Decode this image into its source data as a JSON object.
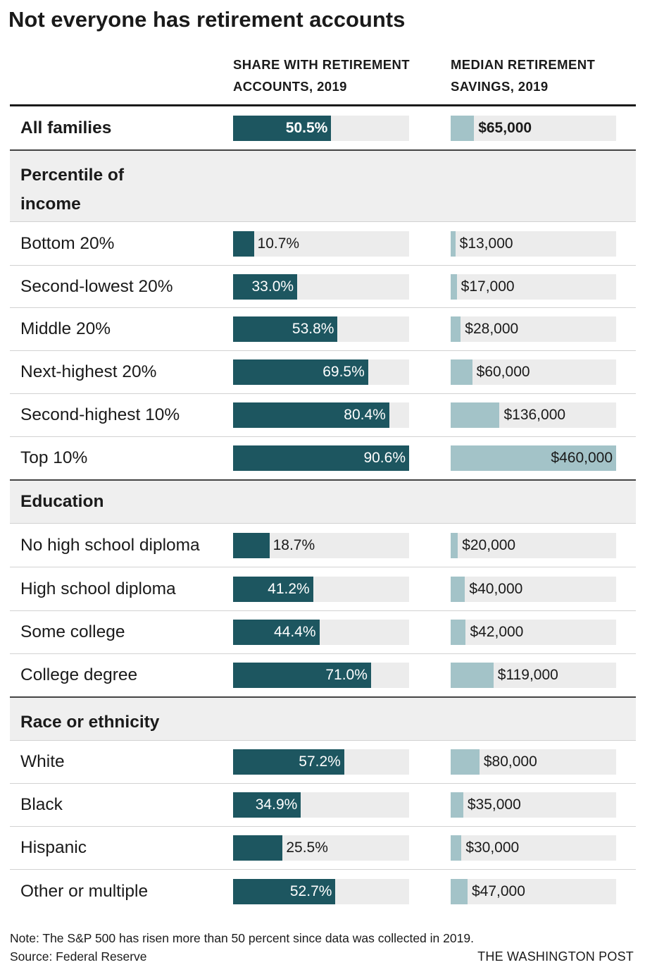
{
  "title": "Not everyone has retirement accounts",
  "columns": {
    "share": "SHARE WITH RETIREMENT ACCOUNTS, 2019",
    "savings": "MEDIAN RETIREMENT SAVINGS, 2019"
  },
  "colors": {
    "share_bar": "#1d5660",
    "savings_bar": "#a3c3c8",
    "track": "#ececec",
    "section_background": "#efefef",
    "rule": "#333333"
  },
  "chart_data": {
    "type": "table",
    "title": "Not everyone has retirement accounts",
    "columns": [
      "SHARE WITH RETIREMENT ACCOUNTS, 2019",
      "MEDIAN RETIREMENT SAVINGS, 2019"
    ],
    "share_max": 90.6,
    "savings_max": 460000,
    "rows": [
      {
        "kind": "data",
        "label": "All families",
        "bold": true,
        "share": 50.5,
        "share_text": "50.5%",
        "savings": 65000,
        "savings_text": "$65,000"
      },
      {
        "kind": "section",
        "label": "Percentile of income"
      },
      {
        "kind": "data",
        "label": "Bottom 20%",
        "share": 10.7,
        "share_text": "10.7%",
        "savings": 13000,
        "savings_text": "$13,000"
      },
      {
        "kind": "data",
        "label": "Second-lowest 20%",
        "share": 33.0,
        "share_text": "33.0%",
        "savings": 17000,
        "savings_text": "$17,000"
      },
      {
        "kind": "data",
        "label": "Middle 20%",
        "share": 53.8,
        "share_text": "53.8%",
        "savings": 28000,
        "savings_text": "$28,000"
      },
      {
        "kind": "data",
        "label": "Next-highest 20%",
        "share": 69.5,
        "share_text": "69.5%",
        "savings": 60000,
        "savings_text": "$60,000"
      },
      {
        "kind": "data",
        "label": "Second-highest 10%",
        "share": 80.4,
        "share_text": "80.4%",
        "savings": 136000,
        "savings_text": "$136,000"
      },
      {
        "kind": "data",
        "label": "Top 10%",
        "share": 90.6,
        "share_text": "90.6%",
        "savings": 460000,
        "savings_text": "$460,000"
      },
      {
        "kind": "section",
        "label": "Education"
      },
      {
        "kind": "data",
        "label": "No high school diploma",
        "share": 18.7,
        "share_text": "18.7%",
        "savings": 20000,
        "savings_text": "$20,000"
      },
      {
        "kind": "data",
        "label": "High school diploma",
        "share": 41.2,
        "share_text": "41.2%",
        "savings": 40000,
        "savings_text": "$40,000"
      },
      {
        "kind": "data",
        "label": "Some college",
        "share": 44.4,
        "share_text": "44.4%",
        "savings": 42000,
        "savings_text": "$42,000"
      },
      {
        "kind": "data",
        "label": "College degree",
        "share": 71.0,
        "share_text": "71.0%",
        "savings": 119000,
        "savings_text": "$119,000"
      },
      {
        "kind": "section",
        "label": "Race or ethnicity"
      },
      {
        "kind": "data",
        "label": "White",
        "share": 57.2,
        "share_text": "57.2%",
        "savings": 80000,
        "savings_text": "$80,000"
      },
      {
        "kind": "data",
        "label": "Black",
        "share": 34.9,
        "share_text": "34.9%",
        "savings": 35000,
        "savings_text": "$35,000"
      },
      {
        "kind": "data",
        "label": "Hispanic",
        "share": 25.5,
        "share_text": "25.5%",
        "savings": 30000,
        "savings_text": "$30,000"
      },
      {
        "kind": "data",
        "label": "Other or multiple",
        "share": 52.7,
        "share_text": "52.7%",
        "savings": 47000,
        "savings_text": "$47,000"
      }
    ]
  },
  "footer": {
    "note": "Note: The S&P 500 has risen more than 50 percent since data was collected in 2019.",
    "source": "Source: Federal Reserve",
    "credit": "THE WASHINGTON POST"
  }
}
